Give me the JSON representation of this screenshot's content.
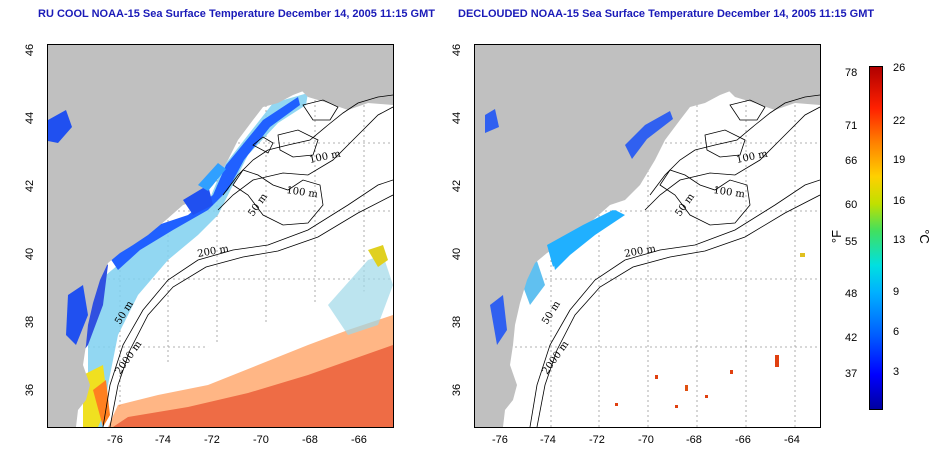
{
  "left_map": {
    "title": "RU COOL NOAA-15 Sea Surface Temperature December 14, 2005 11:15 GMT",
    "contour_labels": [
      "100 m",
      "100 m",
      "50 m",
      "200 m",
      "50 m",
      "2000 m"
    ]
  },
  "right_map": {
    "title": "DECLOUDED NOAA-15 Sea Surface Temperature December 14, 2005 11:15 GMT",
    "contour_labels": [
      "100 m",
      "100 m",
      "50 m",
      "200 m",
      "50 m",
      "2000 m"
    ]
  },
  "axes": {
    "lon_ticks": [
      "-76",
      "-74",
      "-72",
      "-70",
      "-68",
      "-66",
      "-64"
    ],
    "lat_ticks": [
      "46",
      "44",
      "42",
      "40",
      "38",
      "36"
    ]
  },
  "colorbar": {
    "fahrenheit_ticks": [
      "78",
      "71",
      "66",
      "60",
      "55",
      "48",
      "42",
      "37"
    ],
    "celsius_ticks": [
      "26",
      "22",
      "19",
      "16",
      "13",
      "9",
      "6",
      "3"
    ],
    "fahrenheit_unit": "°F",
    "celsius_unit": "°C"
  },
  "colors": {
    "land": "#c0c0c0",
    "title": "#1a1ab8"
  }
}
